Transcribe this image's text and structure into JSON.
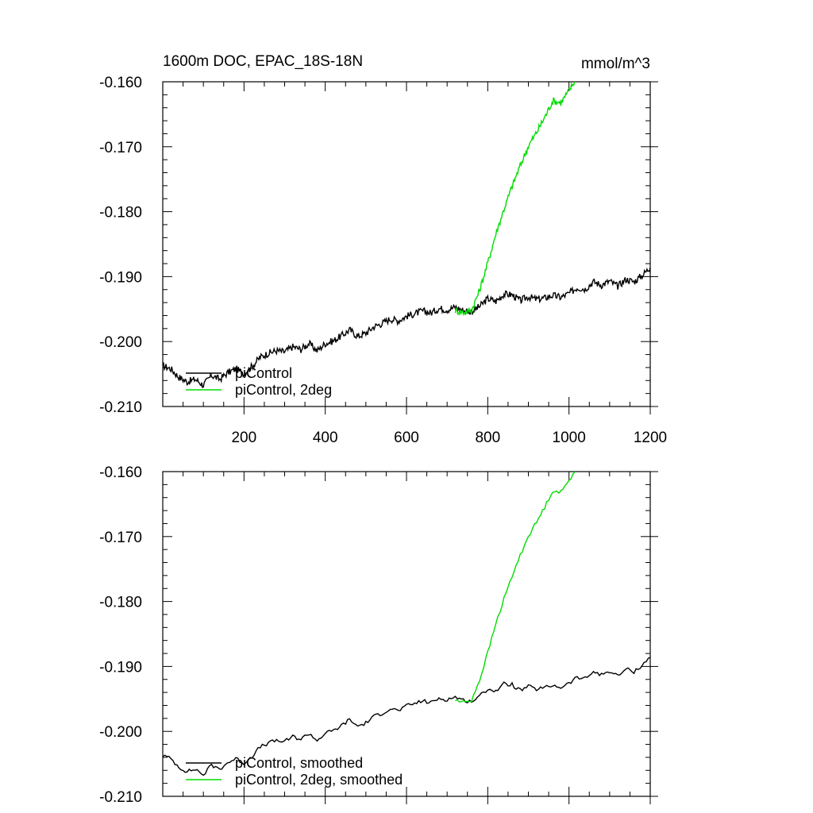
{
  "chart_data": [
    {
      "type": "line",
      "title": "1600m DOC, EPAC_18S-18N",
      "units": "mmol/m^3",
      "xlim": [
        0,
        1200
      ],
      "ylim": [
        -0.21,
        -0.16
      ],
      "xticks": [
        200,
        400,
        600,
        800,
        1000,
        1200
      ],
      "xtick_labels": [
        "200",
        "400",
        "600",
        "800",
        "1000",
        "1200"
      ],
      "yticks": [
        -0.16,
        -0.17,
        -0.18,
        -0.19,
        -0.2,
        -0.21
      ],
      "ytick_labels": [
        "-0.160",
        "-0.170",
        "-0.180",
        "-0.190",
        "-0.200",
        "-0.210"
      ],
      "legend_position": "bottom-left",
      "grid": false,
      "series": [
        {
          "name": "piControl",
          "color": "#000000",
          "x": [
            0,
            20,
            40,
            60,
            80,
            100,
            120,
            140,
            160,
            180,
            200,
            220,
            240,
            260,
            280,
            300,
            320,
            340,
            360,
            380,
            400,
            420,
            440,
            460,
            480,
            500,
            520,
            540,
            560,
            580,
            600,
            620,
            640,
            660,
            680,
            700,
            720,
            740,
            760,
            780,
            800,
            820,
            840,
            860,
            880,
            900,
            920,
            940,
            960,
            980,
            1000,
            1020,
            1040,
            1060,
            1080,
            1100,
            1120,
            1140,
            1160,
            1180,
            1200
          ],
          "y": [
            -0.2037,
            -0.2042,
            -0.2055,
            -0.2062,
            -0.2058,
            -0.2067,
            -0.2052,
            -0.2058,
            -0.2048,
            -0.2042,
            -0.2049,
            -0.2038,
            -0.2024,
            -0.2018,
            -0.2014,
            -0.2016,
            -0.2008,
            -0.2012,
            -0.2003,
            -0.2014,
            -0.2003,
            -0.1999,
            -0.1991,
            -0.1982,
            -0.1992,
            -0.1987,
            -0.1977,
            -0.1972,
            -0.1965,
            -0.1968,
            -0.1961,
            -0.1957,
            -0.1953,
            -0.1956,
            -0.1949,
            -0.1951,
            -0.1947,
            -0.1952,
            -0.1954,
            -0.1946,
            -0.1934,
            -0.1938,
            -0.1927,
            -0.1928,
            -0.1937,
            -0.1931,
            -0.1935,
            -0.1933,
            -0.1929,
            -0.1932,
            -0.1926,
            -0.1917,
            -0.1919,
            -0.1908,
            -0.1913,
            -0.1907,
            -0.1915,
            -0.1904,
            -0.1908,
            -0.1898,
            -0.1886
          ]
        },
        {
          "name": "piControl, 2deg",
          "color": "#00dd00",
          "x": [
            720,
            740,
            760,
            780,
            800,
            820,
            840,
            860,
            880,
            900,
            920,
            940,
            960,
            980,
            1000,
            1020
          ],
          "y": [
            -0.1952,
            -0.1955,
            -0.1952,
            -0.1921,
            -0.1879,
            -0.1834,
            -0.1796,
            -0.1761,
            -0.1729,
            -0.1699,
            -0.1678,
            -0.1655,
            -0.1629,
            -0.1632,
            -0.1614,
            -0.1592
          ]
        }
      ]
    },
    {
      "type": "line",
      "xlim": [
        0,
        1200
      ],
      "ylim": [
        -0.21,
        -0.16
      ],
      "xticks": [
        200,
        400,
        600,
        800,
        1000,
        1200
      ],
      "yticks": [
        -0.16,
        -0.17,
        -0.18,
        -0.19,
        -0.2,
        -0.21
      ],
      "ytick_labels": [
        "-0.160",
        "-0.170",
        "-0.180",
        "-0.190",
        "-0.200",
        "-0.210"
      ],
      "legend_position": "bottom-left",
      "grid": false,
      "series": [
        {
          "name": "piControl, smoothed",
          "color": "#000000",
          "x": [
            0,
            20,
            40,
            60,
            80,
            100,
            120,
            140,
            160,
            180,
            200,
            220,
            240,
            260,
            280,
            300,
            320,
            340,
            360,
            380,
            400,
            420,
            440,
            460,
            480,
            500,
            520,
            540,
            560,
            580,
            600,
            620,
            640,
            660,
            680,
            700,
            720,
            740,
            760,
            780,
            800,
            820,
            840,
            860,
            880,
            900,
            920,
            940,
            960,
            980,
            1000,
            1020,
            1040,
            1060,
            1080,
            1100,
            1120,
            1140,
            1160,
            1180,
            1200
          ],
          "y": [
            -0.2037,
            -0.2042,
            -0.2055,
            -0.2062,
            -0.2058,
            -0.2067,
            -0.2052,
            -0.2058,
            -0.2048,
            -0.2042,
            -0.2049,
            -0.2038,
            -0.2024,
            -0.2018,
            -0.2014,
            -0.2016,
            -0.2008,
            -0.2012,
            -0.2003,
            -0.2014,
            -0.2003,
            -0.1999,
            -0.1991,
            -0.1982,
            -0.1992,
            -0.1987,
            -0.1977,
            -0.1972,
            -0.1965,
            -0.1968,
            -0.1961,
            -0.1957,
            -0.1953,
            -0.1956,
            -0.1949,
            -0.1951,
            -0.1947,
            -0.1952,
            -0.1954,
            -0.1946,
            -0.1934,
            -0.1938,
            -0.1927,
            -0.1928,
            -0.1937,
            -0.1931,
            -0.1935,
            -0.1933,
            -0.1929,
            -0.1932,
            -0.1926,
            -0.1917,
            -0.1919,
            -0.1908,
            -0.1913,
            -0.1907,
            -0.1915,
            -0.1904,
            -0.1908,
            -0.1898,
            -0.1886
          ]
        },
        {
          "name": "piControl, 2deg, smoothed",
          "color": "#00dd00",
          "x": [
            720,
            740,
            760,
            780,
            800,
            820,
            840,
            860,
            880,
            900,
            920,
            940,
            960,
            980,
            1000,
            1020
          ],
          "y": [
            -0.1952,
            -0.1955,
            -0.1952,
            -0.1921,
            -0.1879,
            -0.1834,
            -0.1796,
            -0.1761,
            -0.1729,
            -0.1699,
            -0.1678,
            -0.1655,
            -0.1629,
            -0.1632,
            -0.1614,
            -0.1592
          ]
        }
      ]
    }
  ]
}
